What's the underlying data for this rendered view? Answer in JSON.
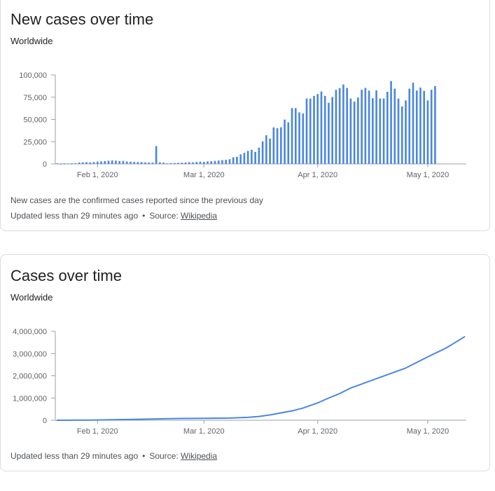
{
  "cards": [
    {
      "title": "New cases over time",
      "subtitle": "Worldwide",
      "note": "New cases are the confirmed cases reported since the previous day",
      "updated": "Updated less than 29 minutes ago",
      "source_label": "Source:",
      "source_link": "Wikipedia"
    },
    {
      "title": "Cases over time",
      "subtitle": "Worldwide",
      "updated": "Updated less than 29 minutes ago",
      "source_label": "Source:",
      "source_link": "Wikipedia"
    }
  ],
  "chart_data": [
    {
      "type": "bar",
      "title": "New cases over time",
      "subtitle": "Worldwide",
      "color": "#4a86e0",
      "ylim": [
        0,
        100000
      ],
      "yticks": [
        0,
        25000,
        50000,
        75000,
        100000
      ],
      "ytick_labels": [
        "0",
        "25,000",
        "50,000",
        "75,000",
        "100,000"
      ],
      "x_ticks": [
        {
          "label": "Feb 1, 2020",
          "index": 11
        },
        {
          "label": "Mar 1, 2020",
          "index": 40
        },
        {
          "label": "Apr 1, 2020",
          "index": 71
        },
        {
          "label": "May 1, 2020",
          "index": 101
        }
      ],
      "grid": false,
      "x_start": "2020-01-22",
      "values": [
        600,
        100,
        600,
        500,
        700,
        800,
        1500,
        1800,
        2000,
        1700,
        2100,
        2600,
        2800,
        3200,
        3600,
        3900,
        3700,
        3200,
        3400,
        2700,
        2500,
        2300,
        2100,
        2000,
        1800,
        1600,
        1500,
        20000,
        1800,
        1500,
        600,
        800,
        1000,
        1200,
        1400,
        1600,
        2000,
        1800,
        2200,
        2500,
        2300,
        2800,
        3000,
        3400,
        3800,
        4200,
        4600,
        5300,
        7400,
        8000,
        10700,
        12400,
        14600,
        15800,
        13500,
        18300,
        25300,
        32200,
        28500,
        41000,
        40100,
        41200,
        49800,
        46800,
        62800,
        62700,
        57900,
        56700,
        73500,
        73400,
        76400,
        78500,
        81400,
        76500,
        68700,
        75200,
        83300,
        85200,
        89300,
        85400,
        73500,
        70100,
        74600,
        83400,
        85400,
        82400,
        73800,
        82600,
        73500,
        73600,
        81100,
        93100,
        84600,
        73500,
        64600,
        71400,
        84600,
        91300,
        82500,
        85800,
        82100,
        71400,
        83300,
        87500
      ]
    },
    {
      "type": "line",
      "title": "Cases over time",
      "subtitle": "Worldwide",
      "color": "#4a86e0",
      "ylim": [
        0,
        4000000
      ],
      "yticks": [
        0,
        1000000,
        2000000,
        3000000,
        4000000
      ],
      "ytick_labels": [
        "0",
        "1,000,000",
        "2,000,000",
        "3,000,000",
        "4,000,000"
      ],
      "x_ticks": [
        {
          "label": "Feb 1, 2020",
          "index": 11
        },
        {
          "label": "Mar 1, 2020",
          "index": 40
        },
        {
          "label": "Apr 1, 2020",
          "index": 71
        },
        {
          "label": "May 1, 2020",
          "index": 101
        }
      ],
      "grid": false,
      "x_start": "2020-01-22",
      "points": [
        [
          0,
          600
        ],
        [
          11,
          12000
        ],
        [
          22,
          45000
        ],
        [
          33,
          80000
        ],
        [
          40,
          87000
        ],
        [
          47,
          100000
        ],
        [
          52,
          130000
        ],
        [
          55,
          170000
        ],
        [
          58,
          240000
        ],
        [
          61,
          330000
        ],
        [
          64,
          420000
        ],
        [
          67,
          550000
        ],
        [
          71,
          780000
        ],
        [
          74,
          1000000
        ],
        [
          77,
          1200000
        ],
        [
          80,
          1450000
        ],
        [
          85,
          1750000
        ],
        [
          90,
          2050000
        ],
        [
          95,
          2350000
        ],
        [
          101,
          2850000
        ],
        [
          106,
          3250000
        ],
        [
          111,
          3750000
        ]
      ]
    }
  ]
}
